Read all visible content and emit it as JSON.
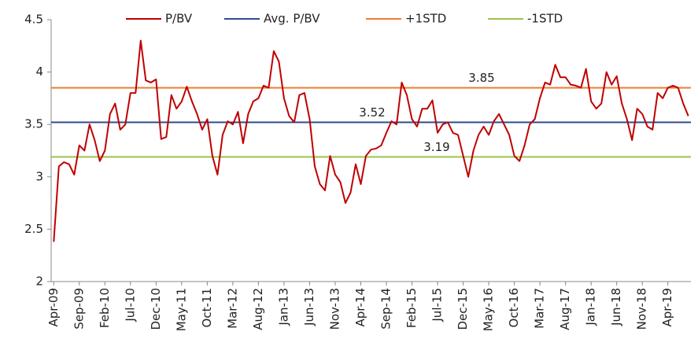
{
  "chart_data": {
    "type": "line",
    "categories": [
      "Apr-09",
      null,
      null,
      null,
      null,
      "Sep-09",
      null,
      null,
      null,
      null,
      "Feb-10",
      null,
      null,
      null,
      null,
      "Jul-10",
      null,
      null,
      null,
      null,
      "Dec-10",
      null,
      null,
      null,
      null,
      "May-11",
      null,
      null,
      null,
      null,
      "Oct-11",
      null,
      null,
      null,
      null,
      "Mar-12",
      null,
      null,
      null,
      null,
      "Aug-12",
      null,
      null,
      null,
      null,
      "Jan-13",
      null,
      null,
      null,
      null,
      "Jun-13",
      null,
      null,
      null,
      null,
      "Nov-13",
      null,
      null,
      null,
      null,
      "Apr-14",
      null,
      null,
      null,
      null,
      "Sep-14",
      null,
      null,
      null,
      null,
      "Feb-15",
      null,
      null,
      null,
      null,
      "Jul-15",
      null,
      null,
      null,
      null,
      "Dec-15",
      null,
      null,
      null,
      null,
      "May-16",
      null,
      null,
      null,
      null,
      "Oct-16",
      null,
      null,
      null,
      null,
      "Mar-17",
      null,
      null,
      null,
      null,
      "Aug-17",
      null,
      null,
      null,
      null,
      "Jan-18",
      null,
      null,
      null,
      null,
      "Jun-18",
      null,
      null,
      null,
      null,
      "Nov-18",
      null,
      null,
      null,
      null,
      "Apr-19",
      null,
      null,
      null,
      null
    ],
    "series": [
      {
        "name": "P/BV",
        "color": "#c00000",
        "values": [
          2.38,
          3.1,
          3.14,
          3.12,
          3.02,
          3.3,
          3.25,
          3.5,
          3.35,
          3.15,
          3.25,
          3.6,
          3.7,
          3.45,
          3.5,
          3.8,
          3.8,
          4.3,
          3.92,
          3.9,
          3.93,
          3.36,
          3.38,
          3.78,
          3.65,
          3.72,
          3.86,
          3.72,
          3.6,
          3.45,
          3.55,
          3.2,
          3.02,
          3.4,
          3.53,
          3.5,
          3.62,
          3.32,
          3.6,
          3.72,
          3.75,
          3.87,
          3.85,
          4.2,
          4.1,
          3.75,
          3.58,
          3.52,
          3.78,
          3.8,
          3.55,
          3.1,
          2.93,
          2.87,
          3.2,
          3.02,
          2.95,
          2.75,
          2.85,
          3.12,
          2.93,
          3.2,
          3.26,
          3.27,
          3.3,
          3.42,
          3.53,
          3.5,
          3.9,
          3.78,
          3.55,
          3.48,
          3.65,
          3.65,
          3.73,
          3.42,
          3.5,
          3.52,
          3.42,
          3.4,
          3.2,
          3.0,
          3.25,
          3.4,
          3.48,
          3.4,
          3.53,
          3.6,
          3.5,
          3.4,
          3.2,
          3.15,
          3.3,
          3.5,
          3.55,
          3.75,
          3.9,
          3.88,
          4.07,
          3.95,
          3.95,
          3.88,
          3.87,
          3.85,
          4.03,
          3.72,
          3.65,
          3.7,
          4.0,
          3.88,
          3.96,
          3.7,
          3.55,
          3.35,
          3.65,
          3.6,
          3.48,
          3.45,
          3.8,
          3.75,
          3.85,
          3.87,
          3.85,
          3.7,
          3.58
        ]
      }
    ],
    "reference_lines": [
      {
        "name": "Avg. P/BV",
        "color": "#2f4b8f",
        "value": 3.52
      },
      {
        "name": "+1STD",
        "color": "#ed7d31",
        "value": 3.85
      },
      {
        "name": "-1STD",
        "color": "#9bc34a",
        "value": 3.19
      }
    ],
    "ylim": [
      2,
      4.5
    ],
    "yticks": [
      2,
      2.5,
      3,
      3.5,
      4,
      4.5
    ],
    "grid": false
  }
}
